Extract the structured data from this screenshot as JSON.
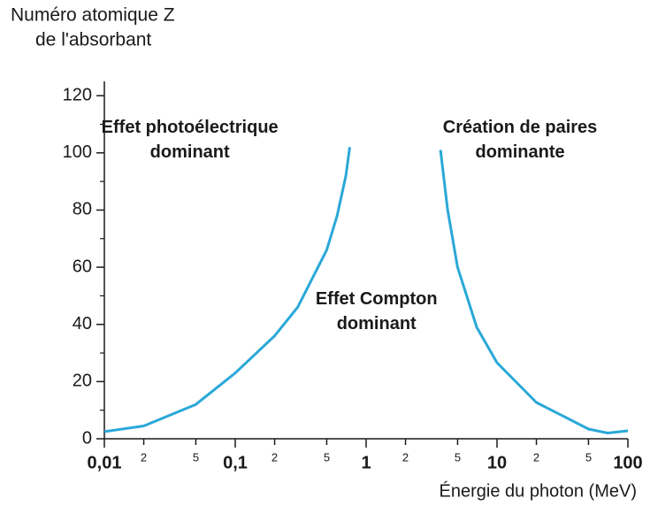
{
  "chart_data": {
    "type": "line",
    "ylabel": [
      "Numéro atomique Z",
      "de l'absorbant"
    ],
    "xlabel": "Énergie du photon (MeV)",
    "xscale": "log",
    "xlim": [
      0.01,
      100
    ],
    "ylim": [
      0,
      125
    ],
    "yticks": [
      0,
      20,
      40,
      60,
      80,
      100,
      120
    ],
    "y_minor_ticks": [
      10,
      30,
      50,
      70,
      90,
      110
    ],
    "xticks": [
      {
        "value": 0.01,
        "label": "0,01"
      },
      {
        "value": 0.02,
        "label": "2"
      },
      {
        "value": 0.05,
        "label": "5"
      },
      {
        "value": 0.1,
        "label": "0,1"
      },
      {
        "value": 0.2,
        "label": "2"
      },
      {
        "value": 0.5,
        "label": "5"
      },
      1,
      {
        "value": 2,
        "label": "2"
      },
      {
        "value": 5,
        "label": "5"
      },
      10,
      {
        "value": 20,
        "label": "2"
      },
      {
        "value": 50,
        "label": "5"
      },
      100
    ],
    "series": [
      {
        "color": "#2aa8d8",
        "x": [
          0.01,
          0.02,
          0.05,
          0.1,
          0.2,
          0.3,
          0.5,
          0.6,
          0.7,
          0.75
        ],
        "values": [
          2.5,
          4.5,
          12,
          23,
          36,
          46,
          66,
          78,
          92,
          102
        ]
      },
      {
        "color": "#2aa8d8",
        "x": [
          3.7,
          4.2,
          5,
          7,
          10,
          20,
          50,
          70,
          100
        ],
        "values": [
          101,
          80,
          60,
          39,
          26.6,
          12.7,
          3.4,
          2,
          2.8
        ]
      }
    ],
    "annotations": [
      {
        "lines": [
          "Effet photoélectrique",
          "dominant"
        ],
        "x": 0.045,
        "y": 100
      },
      {
        "lines": [
          "Création de paires",
          "dominante"
        ],
        "x": 15,
        "y": 100
      },
      {
        "lines": [
          "Effet Compton",
          "dominant"
        ],
        "x": 1.2,
        "y": 40
      }
    ]
  }
}
